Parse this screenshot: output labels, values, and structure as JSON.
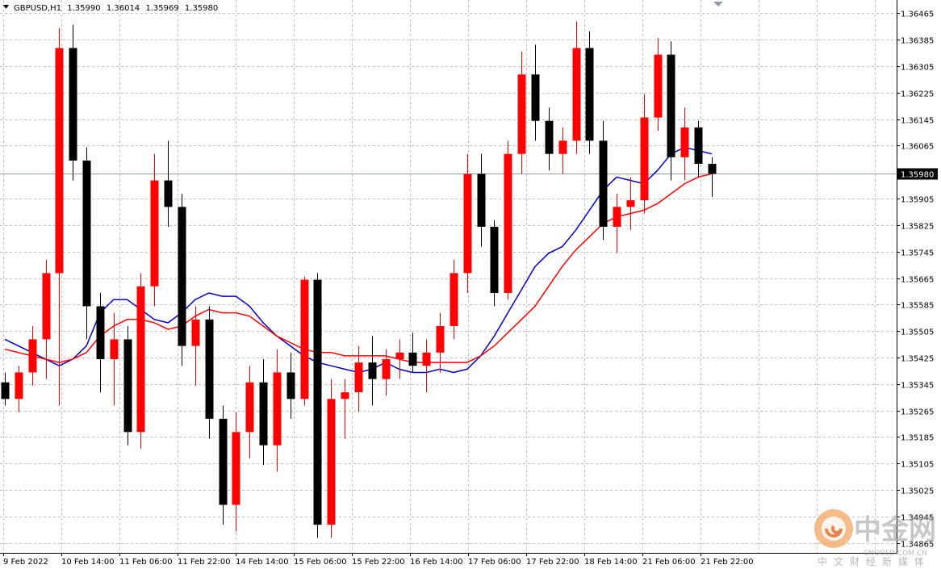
{
  "header": {
    "dropdown_icon": "triangle-down-icon",
    "symbol": "GBPUSD,H1",
    "open": "1.35990",
    "high": "1.36014",
    "low": "1.35969",
    "close": "1.35980"
  },
  "price_tag": "1.35980",
  "watermark": {
    "logo_icon": "cngold-logo-icon",
    "title": "中金网",
    "subtitle": "CNGOLD.COM.CN",
    "tagline": "中文财经新媒体"
  },
  "colors": {
    "bull": "#ff0000",
    "bear": "#000000",
    "ma_fast": "#0000cc",
    "ma_slow": "#ff0000",
    "grid": "#c0c0c0",
    "price_line": "#8e9aa8",
    "price_tag_bg": "#000000"
  },
  "chart_data": {
    "type": "candlestick",
    "symbol": "GBPUSD",
    "timeframe": "H1",
    "grid": true,
    "y_ticks": [
      "1.36465",
      "1.36385",
      "1.36305",
      "1.36225",
      "1.36145",
      "1.36065",
      "1.35905",
      "1.35825",
      "1.35745",
      "1.35665",
      "1.35585",
      "1.35505",
      "1.35425",
      "1.35345",
      "1.35265",
      "1.35185",
      "1.35105",
      "1.35025",
      "1.34945",
      "1.34865"
    ],
    "x_ticks": [
      "9 Feb 2022",
      "10 Feb 14:00",
      "11 Feb 06:00",
      "11 Feb 22:00",
      "14 Feb 14:00",
      "15 Feb 06:00",
      "15 Feb 22:00",
      "16 Feb 14:00",
      "17 Feb 06:00",
      "17 Feb 22:00",
      "18 Feb 14:00",
      "21 Feb 06:00",
      "21 Feb 22:00"
    ],
    "ylim": [
      1.34835,
      1.36505
    ],
    "last_price": 1.3598,
    "series": [
      {
        "name": "",
        "type": "moving-average",
        "color": "#0000cc",
        "values": [
          1.3548,
          1.3546,
          1.3544,
          1.3542,
          1.354,
          1.3542,
          1.3546,
          1.3556,
          1.356,
          1.356,
          1.3557,
          1.3554,
          1.3553,
          1.3556,
          1.356,
          1.3562,
          1.3561,
          1.3561,
          1.3558,
          1.3553,
          1.3549,
          1.3546,
          1.3543,
          1.3541,
          1.354,
          1.3539,
          1.3538,
          1.3539,
          1.3541,
          1.3539,
          1.3538,
          1.3538,
          1.3539,
          1.3538,
          1.3539,
          1.3543,
          1.3549,
          1.3556,
          1.3563,
          1.357,
          1.3574,
          1.3576,
          1.3581,
          1.3587,
          1.3593,
          1.3597,
          1.3596,
          1.3595,
          1.3599,
          1.3604,
          1.3606,
          1.3605,
          1.3604
        ]
      },
      {
        "name": "",
        "type": "moving-average",
        "color": "#ff0000",
        "values": [
          1.3545,
          1.3544,
          1.3543,
          1.3542,
          1.3541,
          1.3542,
          1.3544,
          1.3549,
          1.3552,
          1.3554,
          1.3554,
          1.3553,
          1.3551,
          1.3552,
          1.3555,
          1.3557,
          1.3556,
          1.3556,
          1.3555,
          1.3552,
          1.3549,
          1.3547,
          1.3545,
          1.3544,
          1.3544,
          1.3543,
          1.3543,
          1.3543,
          1.3543,
          1.3542,
          1.3541,
          1.3541,
          1.3541,
          1.3541,
          1.3541,
          1.3543,
          1.3546,
          1.355,
          1.3554,
          1.3558,
          1.3564,
          1.357,
          1.3575,
          1.3579,
          1.3583,
          1.3585,
          1.3586,
          1.3587,
          1.3589,
          1.3592,
          1.3595,
          1.3597,
          1.3598
        ]
      }
    ],
    "candles": [
      [
        1.3535,
        1.3538,
        1.3528,
        1.353
      ],
      [
        1.353,
        1.354,
        1.3526,
        1.3538
      ],
      [
        1.3538,
        1.3552,
        1.3534,
        1.3548
      ],
      [
        1.3548,
        1.3572,
        1.3536,
        1.3568
      ],
      [
        1.3568,
        1.3642,
        1.3528,
        1.3636
      ],
      [
        1.3636,
        1.3643,
        1.3596,
        1.3602
      ],
      [
        1.3602,
        1.3606,
        1.3548,
        1.3558
      ],
      [
        1.3558,
        1.3562,
        1.3532,
        1.3542
      ],
      [
        1.3542,
        1.3556,
        1.3528,
        1.3548
      ],
      [
        1.3548,
        1.3552,
        1.3516,
        1.352
      ],
      [
        1.352,
        1.3568,
        1.3515,
        1.3564
      ],
      [
        1.3564,
        1.3604,
        1.3558,
        1.3596
      ],
      [
        1.3596,
        1.3608,
        1.3582,
        1.3588
      ],
      [
        1.3588,
        1.3592,
        1.354,
        1.3546
      ],
      [
        1.3546,
        1.3558,
        1.3534,
        1.3554
      ],
      [
        1.3554,
        1.3558,
        1.3518,
        1.3524
      ],
      [
        1.3524,
        1.3528,
        1.3492,
        1.3498
      ],
      [
        1.3498,
        1.3526,
        1.349,
        1.352
      ],
      [
        1.352,
        1.354,
        1.3512,
        1.3535
      ],
      [
        1.3535,
        1.3542,
        1.351,
        1.3516
      ],
      [
        1.3516,
        1.3545,
        1.3508,
        1.3538
      ],
      [
        1.3538,
        1.3544,
        1.3524,
        1.353
      ],
      [
        1.353,
        1.3567,
        1.3528,
        1.3566
      ],
      [
        1.3566,
        1.3568,
        1.3488,
        1.3492
      ],
      [
        1.3492,
        1.3536,
        1.3488,
        1.353
      ],
      [
        1.353,
        1.3536,
        1.3518,
        1.3532
      ],
      [
        1.3532,
        1.3546,
        1.3526,
        1.3541
      ],
      [
        1.3541,
        1.3549,
        1.3528,
        1.3536
      ],
      [
        1.3536,
        1.3545,
        1.3531,
        1.3542
      ],
      [
        1.3542,
        1.3548,
        1.3536,
        1.3544
      ],
      [
        1.3544,
        1.355,
        1.3538,
        1.354
      ],
      [
        1.354,
        1.3548,
        1.3532,
        1.3544
      ],
      [
        1.3544,
        1.3556,
        1.3538,
        1.3552
      ],
      [
        1.3552,
        1.3572,
        1.3548,
        1.3568
      ],
      [
        1.3568,
        1.3604,
        1.3562,
        1.3598
      ],
      [
        1.3598,
        1.3604,
        1.3576,
        1.3582
      ],
      [
        1.3582,
        1.3584,
        1.3558,
        1.3562
      ],
      [
        1.3562,
        1.3608,
        1.356,
        1.3604
      ],
      [
        1.3604,
        1.3635,
        1.3598,
        1.3628
      ],
      [
        1.3628,
        1.3637,
        1.3608,
        1.3614
      ],
      [
        1.3614,
        1.3618,
        1.3599,
        1.3604
      ],
      [
        1.3604,
        1.3612,
        1.3598,
        1.3608
      ],
      [
        1.3608,
        1.3644,
        1.3604,
        1.3636
      ],
      [
        1.3636,
        1.3641,
        1.3604,
        1.3608
      ],
      [
        1.3608,
        1.3614,
        1.3578,
        1.3582
      ],
      [
        1.3582,
        1.3592,
        1.3574,
        1.3588
      ],
      [
        1.3588,
        1.3597,
        1.3581,
        1.359
      ],
      [
        1.359,
        1.3622,
        1.3586,
        1.3615
      ],
      [
        1.3615,
        1.3639,
        1.3611,
        1.3634
      ],
      [
        1.3634,
        1.3638,
        1.3596,
        1.3603
      ],
      [
        1.3603,
        1.3618,
        1.3596,
        1.3612
      ],
      [
        1.3612,
        1.3614,
        1.3597,
        1.3601
      ],
      [
        1.3601,
        1.3603,
        1.3591,
        1.3598
      ]
    ]
  }
}
